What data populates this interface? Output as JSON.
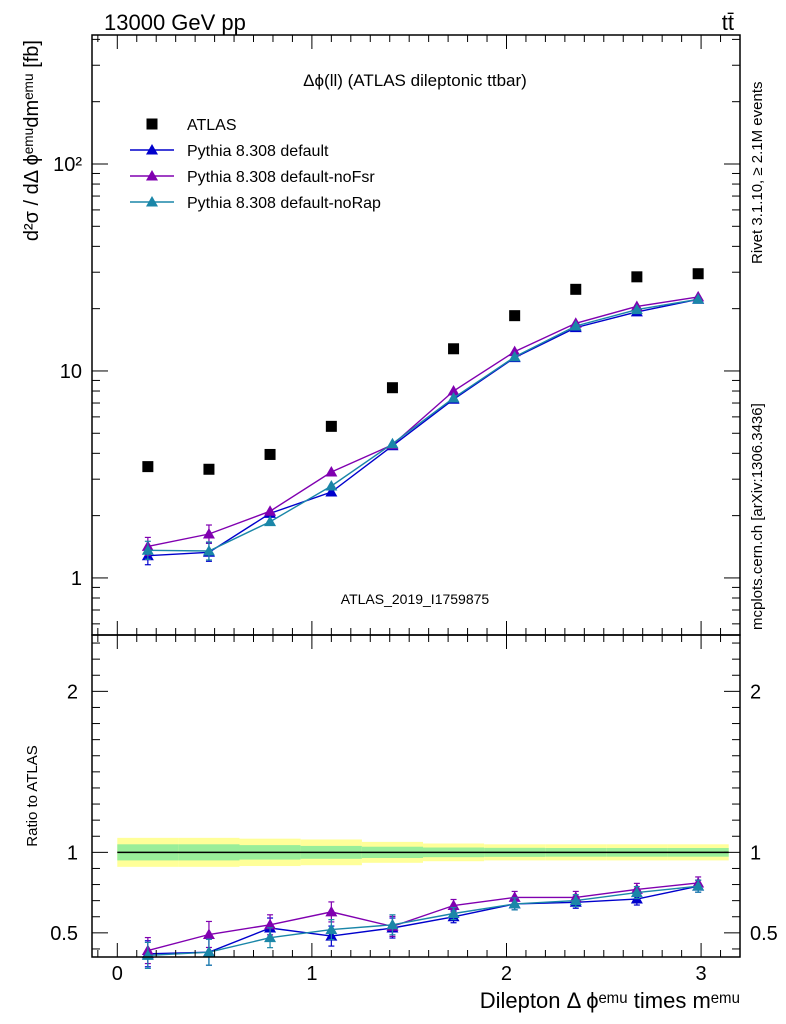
{
  "header": {
    "left": "13000 GeV pp",
    "right": "tt̄"
  },
  "side": {
    "rivet": "Rivet 3.1.10, ≥ 2.1M events",
    "url": "mcplots.cern.ch [arXiv:1306.3436]"
  },
  "watermark": "ATLAS_2019_I1759875",
  "colors": {
    "atlas": "#000000",
    "default": "#0000cc",
    "noFsr": "#8000b0",
    "noRap": "#1a86a8",
    "band_inner": "#99ee99",
    "band_outer": "#ffff99"
  },
  "chart_data": [
    {
      "type": "scatter",
      "panel": "main",
      "title": "Δϕ(ll) (ATLAS dileptonic ttbar)",
      "ylabel": "d²σ / dΔ ϕᵉᵐᵘdmᵉᵐᵘ [fb]",
      "yscale": "log",
      "xlim": [
        -0.13,
        3.2
      ],
      "ylim": [
        0.53,
        420
      ],
      "ytick_labels": [
        "1",
        "10",
        "10²"
      ],
      "legend_position": "top-left",
      "x": [
        0.157,
        0.471,
        0.785,
        1.1,
        1.414,
        1.728,
        2.042,
        2.356,
        2.67,
        2.985
      ],
      "series": [
        {
          "name": "ATLAS",
          "values": [
            3.45,
            3.35,
            3.95,
            5.4,
            8.3,
            12.8,
            18.5,
            24.8,
            28.5,
            29.5
          ]
        },
        {
          "name": "Pythia 8.308 default",
          "values": [
            1.28,
            1.33,
            2.05,
            2.6,
            4.35,
            7.3,
            11.6,
            16.2,
            19.3,
            22.2
          ]
        },
        {
          "name": "Pythia 8.308 default-noFsr",
          "values": [
            1.42,
            1.63,
            2.1,
            3.25,
            4.4,
            8.0,
            12.4,
            17.0,
            20.5,
            22.8
          ]
        },
        {
          "name": "Pythia 8.308 default-noRap",
          "values": [
            1.36,
            1.35,
            1.87,
            2.78,
            4.45,
            7.4,
            11.7,
            16.5,
            19.8,
            22.2
          ]
        }
      ]
    },
    {
      "type": "line",
      "panel": "ratio",
      "xlabel": "Dilepton Δ ϕᵉᵐᵘ times mᵉᵐᵘ",
      "ylabel": "Ratio to ATLAS",
      "xlim": [
        -0.13,
        3.2
      ],
      "ylim": [
        0.35,
        2.35
      ],
      "xtick_labels": [
        "0",
        "1",
        "2",
        "3"
      ],
      "ytick_labels": [
        "0.5",
        "1",
        "2"
      ],
      "band_edges": [
        0,
        0.314,
        0.628,
        0.942,
        1.257,
        1.571,
        1.885,
        2.199,
        2.513,
        2.827,
        3.142
      ],
      "band_inner": [
        0.05,
        0.05,
        0.045,
        0.04,
        0.035,
        0.03,
        0.028,
        0.027,
        0.027,
        0.027
      ],
      "band_outer": [
        0.09,
        0.09,
        0.085,
        0.08,
        0.065,
        0.055,
        0.05,
        0.05,
        0.05,
        0.05
      ],
      "x": [
        0.157,
        0.471,
        0.785,
        1.1,
        1.414,
        1.728,
        2.042,
        2.356,
        2.67,
        2.985
      ],
      "series": [
        {
          "name": "Pythia 8.308 default",
          "values": [
            0.37,
            0.38,
            0.53,
            0.48,
            0.53,
            0.6,
            0.68,
            0.69,
            0.71,
            0.79
          ]
        },
        {
          "name": "Pythia 8.308 default-noFsr",
          "values": [
            0.39,
            0.49,
            0.55,
            0.63,
            0.54,
            0.67,
            0.72,
            0.72,
            0.77,
            0.81
          ]
        },
        {
          "name": "Pythia 8.308 default-noRap",
          "values": [
            0.36,
            0.38,
            0.47,
            0.52,
            0.55,
            0.62,
            0.68,
            0.7,
            0.75,
            0.79
          ]
        }
      ]
    }
  ]
}
